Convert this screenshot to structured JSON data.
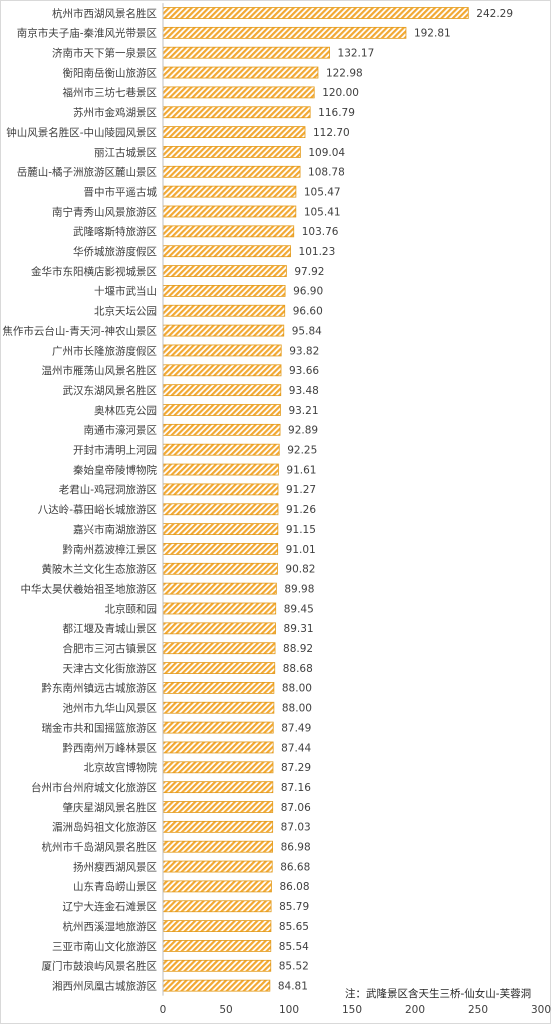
{
  "chart_data": {
    "type": "bar",
    "orientation": "horizontal",
    "categories": [
      "杭州市西湖风景名胜区",
      "南京市夫子庙-秦淮风光带景区",
      "济南市天下第一泉景区",
      "衡阳南岳衡山旅游区",
      "福州市三坊七巷景区",
      "苏州市金鸡湖景区",
      "钟山风景名胜区-中山陵园风景区",
      "丽江古城景区",
      "岳麓山-橘子洲旅游区麓山景区",
      "晋中市平遥古城",
      "南宁青秀山风景旅游区",
      "武隆喀斯特旅游区",
      "华侨城旅游度假区",
      "金华市东阳横店影视城景区",
      "十堰市武当山",
      "北京天坛公园",
      "焦作市云台山-青天河-神农山景区",
      "广州市长隆旅游度假区",
      "温州市雁荡山风景名胜区",
      "武汉东湖风景名胜区",
      "奥林匹克公园",
      "南通市濠河景区",
      "开封市清明上河园",
      "秦始皇帝陵博物院",
      "老君山-鸡冠洞旅游区",
      "八达岭-慕田峪长城旅游区",
      "嘉兴市南湖旅游区",
      "黔南州荔波樟江景区",
      "黄陂木兰文化生态旅游区",
      "中华太昊伏羲始祖圣地旅游区",
      "北京颐和园",
      "都江堰及青城山景区",
      "合肥市三河古镇景区",
      "天津古文化街旅游区",
      "黔东南州镇远古城旅游区",
      "池州市九华山风景区",
      "瑞金市共和国摇篮旅游区",
      "黔西南州万峰林景区",
      "北京故宫博物院",
      "台州市台州府城文化旅游区",
      "肇庆星湖风景名胜区",
      "湄洲岛妈祖文化旅游区",
      "杭州市千岛湖风景名胜区",
      "扬州瘦西湖风景区",
      "山东青岛崂山景区",
      "辽宁大连金石滩景区",
      "杭州西溪湿地旅游区",
      "三亚市南山文化旅游区",
      "厦门市鼓浪屿风景名胜区",
      "湘西州凤凰古城旅游区"
    ],
    "values": [
      242.29,
      192.81,
      132.17,
      122.98,
      120.0,
      116.79,
      112.7,
      109.04,
      108.78,
      105.47,
      105.41,
      103.76,
      101.23,
      97.92,
      96.9,
      96.6,
      95.84,
      93.82,
      93.66,
      93.48,
      93.21,
      92.89,
      92.25,
      91.61,
      91.27,
      91.26,
      91.15,
      91.01,
      90.82,
      89.98,
      89.45,
      89.31,
      88.92,
      88.68,
      88.0,
      88.0,
      87.49,
      87.44,
      87.29,
      87.16,
      87.06,
      87.03,
      86.98,
      86.68,
      86.08,
      85.79,
      85.65,
      85.54,
      85.52,
      84.81
    ],
    "value_labels": [
      "242.29",
      "192.81",
      "132.17",
      "122.98",
      "120.00",
      "116.79",
      "112.70",
      "109.04",
      "108.78",
      "105.47",
      "105.41",
      "103.76",
      "101.23",
      "97.92",
      "96.90",
      "96.60",
      "95.84",
      "93.82",
      "93.66",
      "93.48",
      "93.21",
      "92.89",
      "92.25",
      "91.61",
      "91.27",
      "91.26",
      "91.15",
      "91.01",
      "90.82",
      "89.98",
      "89.45",
      "89.31",
      "88.92",
      "88.68",
      "88.00",
      "88.00",
      "87.49",
      "87.44",
      "87.29",
      "87.16",
      "87.06",
      "87.03",
      "86.98",
      "86.68",
      "86.08",
      "85.79",
      "85.65",
      "85.54",
      "85.52",
      "84.81"
    ],
    "xlim": [
      0,
      300
    ],
    "xticks": [
      "0",
      "50",
      "100",
      "150",
      "200",
      "250",
      "300"
    ],
    "title": "",
    "xlabel": "",
    "ylabel": "",
    "grid": false,
    "legend": "none",
    "bar_style": "diagonal-hatch",
    "colors": {
      "bar_fill": "#f2a832",
      "bar_stroke": "#e39b1c",
      "text": "#404040",
      "axis": "#bfbfbf"
    },
    "note": "注：武隆景区含天生三桥-仙女山-芙蓉洞"
  }
}
